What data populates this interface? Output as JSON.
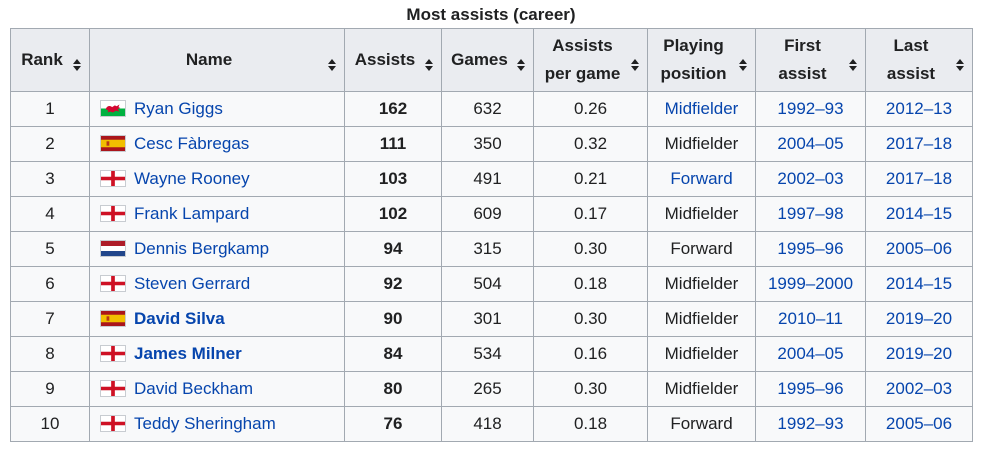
{
  "table": {
    "caption": "Most assists (career)",
    "headers": [
      {
        "key": "rank",
        "label_lines": [
          "Rank"
        ]
      },
      {
        "key": "name",
        "label_lines": [
          "Name"
        ]
      },
      {
        "key": "assists",
        "label_lines": [
          "Assists"
        ]
      },
      {
        "key": "games",
        "label_lines": [
          "Games"
        ]
      },
      {
        "key": "apg",
        "label_lines": [
          "Assists",
          "per game"
        ]
      },
      {
        "key": "position",
        "label_lines": [
          "Playing",
          "position"
        ]
      },
      {
        "key": "first",
        "label_lines": [
          "First",
          "assist"
        ]
      },
      {
        "key": "last",
        "label_lines": [
          "Last",
          "assist"
        ]
      }
    ],
    "sort_icon": "sort-arrows-icon",
    "colors": {
      "link": "#0645ad",
      "header_bg": "#eaecf0",
      "cell_bg": "#f8f9fa",
      "border": "#a2a9b1"
    },
    "rows": [
      {
        "rank": "1",
        "flag": "wales-flag-icon",
        "name": "Ryan Giggs",
        "name_bold": false,
        "assists": "162",
        "games": "632",
        "apg": "0.26",
        "position": "Midfielder",
        "position_link": true,
        "first": "1992–93",
        "last": "2012–13"
      },
      {
        "rank": "2",
        "flag": "spain-flag-icon",
        "name": "Cesc Fàbregas",
        "name_bold": false,
        "assists": "111",
        "games": "350",
        "apg": "0.32",
        "position": "Midfielder",
        "position_link": false,
        "first": "2004–05",
        "last": "2017–18"
      },
      {
        "rank": "3",
        "flag": "england-flag-icon",
        "name": "Wayne Rooney",
        "name_bold": false,
        "assists": "103",
        "games": "491",
        "apg": "0.21",
        "position": "Forward",
        "position_link": true,
        "first": "2002–03",
        "last": "2017–18"
      },
      {
        "rank": "4",
        "flag": "england-flag-icon",
        "name": "Frank Lampard",
        "name_bold": false,
        "assists": "102",
        "games": "609",
        "apg": "0.17",
        "position": "Midfielder",
        "position_link": false,
        "first": "1997–98",
        "last": "2014–15"
      },
      {
        "rank": "5",
        "flag": "netherlands-flag-icon",
        "name": "Dennis Bergkamp",
        "name_bold": false,
        "assists": "94",
        "games": "315",
        "apg": "0.30",
        "position": "Forward",
        "position_link": false,
        "first": "1995–96",
        "last": "2005–06"
      },
      {
        "rank": "6",
        "flag": "england-flag-icon",
        "name": "Steven Gerrard",
        "name_bold": false,
        "assists": "92",
        "games": "504",
        "apg": "0.18",
        "position": "Midfielder",
        "position_link": false,
        "first": "1999–2000",
        "last": "2014–15"
      },
      {
        "rank": "7",
        "flag": "spain-flag-icon",
        "name": "David Silva",
        "name_bold": true,
        "assists": "90",
        "games": "301",
        "apg": "0.30",
        "position": "Midfielder",
        "position_link": false,
        "first": "2010–11",
        "last": "2019–20"
      },
      {
        "rank": "8",
        "flag": "england-flag-icon",
        "name": "James Milner",
        "name_bold": true,
        "assists": "84",
        "games": "534",
        "apg": "0.16",
        "position": "Midfielder",
        "position_link": false,
        "first": "2004–05",
        "last": "2019–20"
      },
      {
        "rank": "9",
        "flag": "england-flag-icon",
        "name": "David Beckham",
        "name_bold": false,
        "assists": "80",
        "games": "265",
        "apg": "0.30",
        "position": "Midfielder",
        "position_link": false,
        "first": "1995–96",
        "last": "2002–03"
      },
      {
        "rank": "10",
        "flag": "england-flag-icon",
        "name": "Teddy Sheringham",
        "name_bold": false,
        "assists": "76",
        "games": "418",
        "apg": "0.18",
        "position": "Forward",
        "position_link": false,
        "first": "1992–93",
        "last": "2005–06"
      }
    ]
  }
}
